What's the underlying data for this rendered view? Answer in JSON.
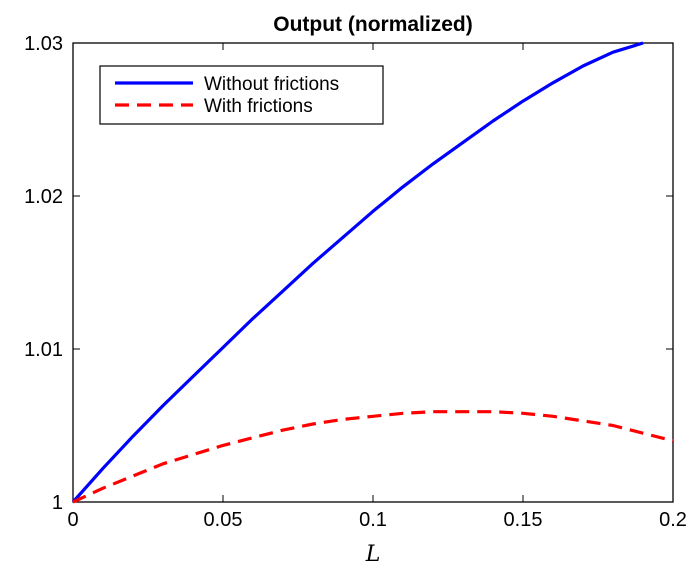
{
  "chart_data": {
    "type": "line",
    "title": "Output (normalized)",
    "xlabel": "L",
    "ylabel": "",
    "xlim": [
      0,
      0.2
    ],
    "ylim": [
      1,
      1.03
    ],
    "xticks": [
      0,
      0.05,
      0.1,
      0.15,
      0.2
    ],
    "xtick_labels": [
      "0",
      "0.05",
      "0.1",
      "0.15",
      "0.2"
    ],
    "yticks": [
      1,
      1.01,
      1.02,
      1.03
    ],
    "ytick_labels": [
      "1",
      "1.01",
      "1.02",
      "1.03"
    ],
    "grid": false,
    "legend_position": "top-left",
    "series": [
      {
        "name": "Without frictions",
        "color": "#0000ff",
        "style": "solid",
        "x": [
          0,
          0.01,
          0.02,
          0.03,
          0.04,
          0.05,
          0.06,
          0.07,
          0.08,
          0.09,
          0.1,
          0.11,
          0.12,
          0.13,
          0.14,
          0.15,
          0.16,
          0.17,
          0.18,
          0.19
        ],
        "y": [
          1.0,
          1.0022,
          1.0043,
          1.0063,
          1.0082,
          1.0101,
          1.012,
          1.0138,
          1.0156,
          1.0173,
          1.019,
          1.0206,
          1.0221,
          1.0235,
          1.0249,
          1.0262,
          1.0274,
          1.0285,
          1.0294,
          1.03
        ]
      },
      {
        "name": "With frictions",
        "color": "#ff0000",
        "style": "dashed",
        "x": [
          0,
          0.01,
          0.02,
          0.03,
          0.04,
          0.05,
          0.06,
          0.07,
          0.08,
          0.09,
          0.1,
          0.11,
          0.12,
          0.13,
          0.14,
          0.15,
          0.16,
          0.17,
          0.18,
          0.19,
          0.2
        ],
        "y": [
          1.0,
          1.0009,
          1.0017,
          1.0025,
          1.0031,
          1.0037,
          1.0042,
          1.0047,
          1.0051,
          1.0054,
          1.0056,
          1.0058,
          1.0059,
          1.0059,
          1.0059,
          1.0058,
          1.0056,
          1.0053,
          1.005,
          1.0045,
          1.004
        ]
      }
    ]
  }
}
